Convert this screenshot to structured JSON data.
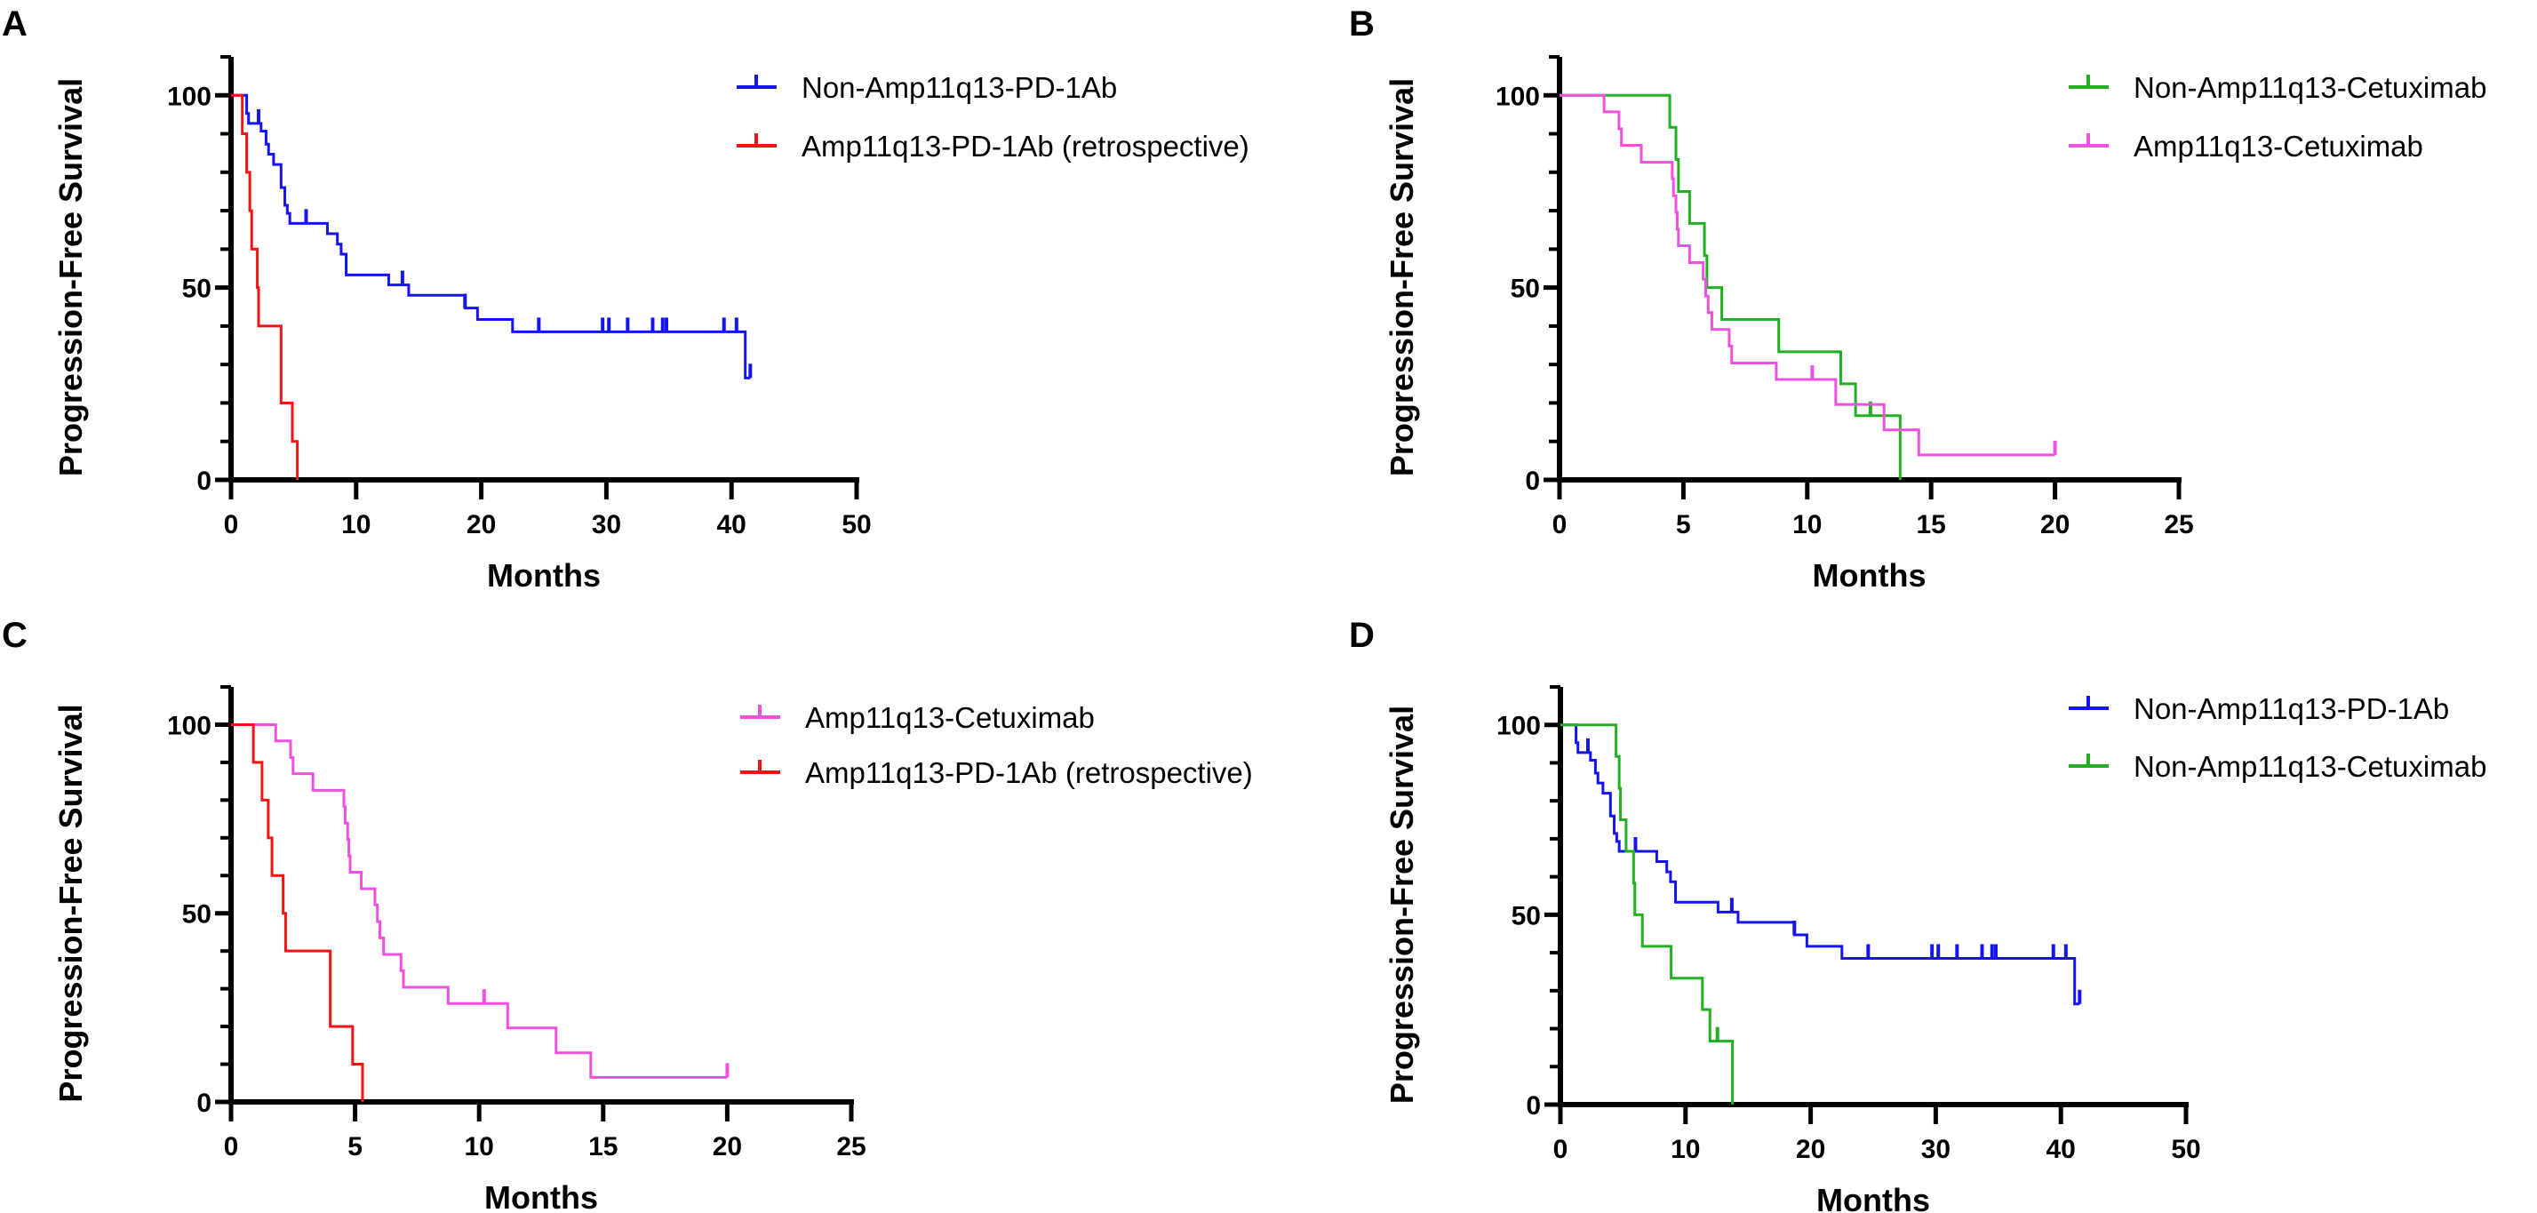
{
  "colors": {
    "blue": "#1414f0",
    "red": "#f01414",
    "green": "#22b022",
    "magenta": "#f050e0"
  },
  "series_library": {
    "non_amp_pd1": {
      "name": "Non-Amp11q13-PD-1Ab",
      "color": "blue",
      "steps": [
        [
          0,
          100
        ],
        [
          1.25,
          95.3
        ],
        [
          1.4,
          92.7
        ],
        [
          2.4,
          90.7
        ],
        [
          2.8,
          87.3
        ],
        [
          3.0,
          84.7
        ],
        [
          3.4,
          82
        ],
        [
          4.0,
          76
        ],
        [
          4.3,
          71.4
        ],
        [
          4.5,
          69.3
        ],
        [
          4.7,
          66.7
        ],
        [
          7.7,
          64
        ],
        [
          8.5,
          61.3
        ],
        [
          8.8,
          58.7
        ],
        [
          9.2,
          53.3
        ],
        [
          12.6,
          50.7
        ],
        [
          14.2,
          48
        ],
        [
          18.7,
          44.7
        ],
        [
          19.7,
          41.7
        ],
        [
          22.5,
          38.5
        ],
        [
          41.1,
          26.5
        ]
      ],
      "end": 41.5,
      "censored": [
        2.2,
        6.0,
        13.7,
        18.7,
        24.6,
        29.7,
        30.2,
        31.7,
        33.7,
        34.5,
        34.8,
        39.4,
        40.4,
        41.5
      ]
    },
    "amp_pd1": {
      "name": "Amp11q13-PD-1Ab (retrospective)",
      "color": "red",
      "steps": [
        [
          0,
          100
        ],
        [
          0.9,
          90
        ],
        [
          1.25,
          80
        ],
        [
          1.5,
          70
        ],
        [
          1.65,
          60
        ],
        [
          2.1,
          50
        ],
        [
          2.2,
          40
        ],
        [
          4.0,
          20
        ],
        [
          4.9,
          10
        ],
        [
          5.3,
          0
        ]
      ],
      "end": 5.3,
      "censored": []
    },
    "non_amp_cetux": {
      "name": "Non-Amp11q13-Cetuximab",
      "color": "green",
      "steps": [
        [
          0,
          100
        ],
        [
          4.45,
          91.7
        ],
        [
          4.7,
          83.3
        ],
        [
          4.8,
          75
        ],
        [
          5.25,
          66.7
        ],
        [
          5.85,
          58.3
        ],
        [
          5.95,
          50
        ],
        [
          6.55,
          41.7
        ],
        [
          8.85,
          33.3
        ],
        [
          11.35,
          25
        ],
        [
          11.95,
          16.7
        ],
        [
          13.75,
          0
        ]
      ],
      "end": 13.75,
      "censored": [
        12.55
      ]
    },
    "amp_cetux": {
      "name": "Amp11q13-Cetuximab",
      "color": "magenta",
      "steps": [
        [
          0,
          100
        ],
        [
          1.8,
          95.7
        ],
        [
          2.4,
          91.3
        ],
        [
          2.5,
          87
        ],
        [
          3.3,
          82.6
        ],
        [
          4.55,
          78.3
        ],
        [
          4.6,
          73.9
        ],
        [
          4.7,
          69.6
        ],
        [
          4.75,
          65.2
        ],
        [
          4.8,
          60.9
        ],
        [
          5.25,
          56.5
        ],
        [
          5.8,
          52.2
        ],
        [
          5.9,
          47.8
        ],
        [
          6.0,
          43.5
        ],
        [
          6.15,
          39.1
        ],
        [
          6.85,
          34.8
        ],
        [
          6.95,
          30.4
        ],
        [
          8.75,
          26.1
        ],
        [
          11.15,
          19.6
        ],
        [
          13.1,
          13.0
        ],
        [
          14.5,
          6.5
        ]
      ],
      "end": 20,
      "censored": [
        10.2,
        20.0
      ]
    }
  },
  "chart_data": [
    {
      "panel": "A",
      "type": "line",
      "subtype": "kaplan-meier step",
      "xlabel": "Months",
      "ylabel": "Progression-Free Survival",
      "xlim": [
        0,
        50
      ],
      "xticks": [
        "0",
        "10",
        "20",
        "30",
        "40",
        "50"
      ],
      "ylim": [
        0,
        110
      ],
      "yticks": [
        "0",
        "50",
        "100"
      ],
      "legend_position": "top-right",
      "series": [
        "non_amp_pd1",
        "amp_pd1"
      ]
    },
    {
      "panel": "B",
      "type": "line",
      "subtype": "kaplan-meier step",
      "xlabel": "Months",
      "ylabel": "Progression-Free Survival",
      "xlim": [
        0,
        25
      ],
      "xticks": [
        "0",
        "5",
        "10",
        "15",
        "20",
        "25"
      ],
      "ylim": [
        0,
        110
      ],
      "yticks": [
        "0",
        "50",
        "100"
      ],
      "legend_position": "top-right",
      "series": [
        "non_amp_cetux",
        "amp_cetux"
      ]
    },
    {
      "panel": "C",
      "type": "line",
      "subtype": "kaplan-meier step",
      "xlabel": "Months",
      "ylabel": "Progression-Free Survival",
      "xlim": [
        0,
        25
      ],
      "xticks": [
        "0",
        "5",
        "10",
        "15",
        "20",
        "25"
      ],
      "ylim": [
        0,
        110
      ],
      "yticks": [
        "0",
        "50",
        "100"
      ],
      "legend_position": "top-right",
      "series": [
        "amp_cetux",
        "amp_pd1"
      ]
    },
    {
      "panel": "D",
      "type": "line",
      "subtype": "kaplan-meier step",
      "xlabel": "Months",
      "ylabel": "Progression-Free Survival",
      "xlim": [
        0,
        50
      ],
      "xticks": [
        "0",
        "10",
        "20",
        "30",
        "40",
        "50"
      ],
      "ylim": [
        0,
        110
      ],
      "yticks": [
        "0",
        "50",
        "100"
      ],
      "legend_position": "top-right",
      "series": [
        "non_amp_pd1",
        "non_amp_cetux"
      ]
    }
  ]
}
